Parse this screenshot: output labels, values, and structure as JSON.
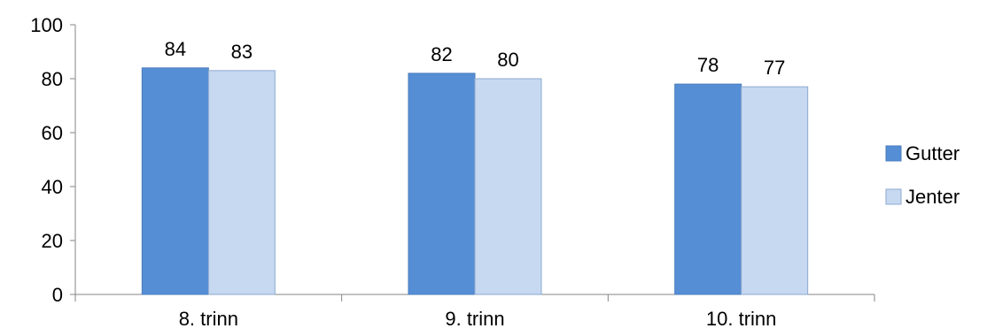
{
  "chart_data": {
    "type": "bar",
    "categories": [
      "8. trinn",
      "9. trinn",
      "10. trinn"
    ],
    "series": [
      {
        "name": "Gutter",
        "values": [
          84,
          82,
          78
        ],
        "color": "#558ED5"
      },
      {
        "name": "Jenter",
        "values": [
          83,
          80,
          77
        ],
        "color": "#C6D9F1"
      }
    ],
    "title": "",
    "xlabel": "",
    "ylabel": "",
    "ylim": [
      0,
      100
    ],
    "yticks": [
      0,
      20,
      40,
      60,
      80,
      100
    ],
    "grid": false,
    "legend_position": "right"
  }
}
